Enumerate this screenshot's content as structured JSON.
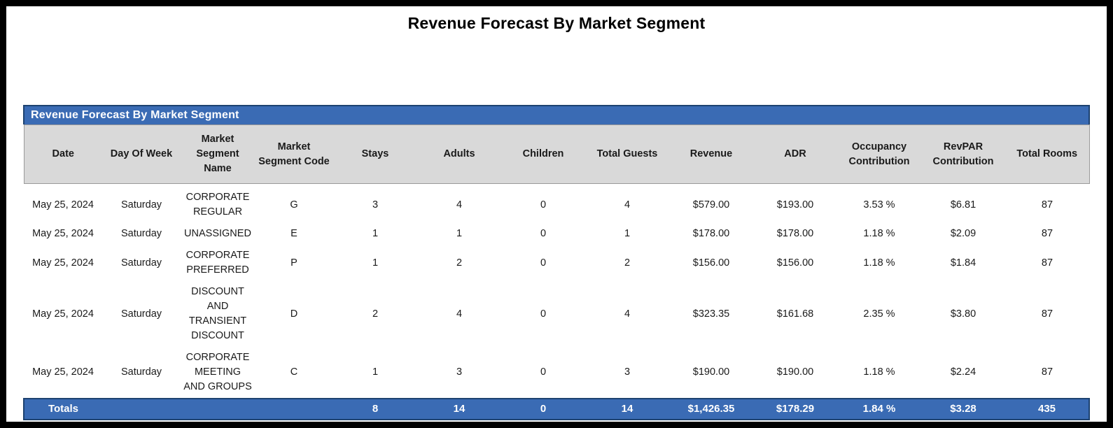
{
  "report": {
    "title": "Revenue Forecast By Market Segment"
  },
  "table": {
    "section_title": "Revenue Forecast By Market Segment",
    "columns": [
      "Date",
      "Day Of Week",
      "Market Segment Name",
      "Market Segment Code",
      "Stays",
      "Adults",
      "Children",
      "Total Guests",
      "Revenue",
      "ADR",
      "Occupancy Contribution",
      "RevPAR Contribution",
      "Total Rooms"
    ],
    "column_keys": [
      "date",
      "day-of-week",
      "market-segment-name",
      "market-segment-code",
      "stays",
      "adults",
      "children",
      "total-guests",
      "revenue",
      "adr",
      "occupancy-contribution",
      "revpar-contribution",
      "total-rooms"
    ],
    "rows": [
      [
        "May 25, 2024",
        "Saturday",
        "CORPORATE REGULAR",
        "G",
        "3",
        "4",
        "0",
        "4",
        "$579.00",
        "$193.00",
        "3.53 %",
        "$6.81",
        "87"
      ],
      [
        "May 25, 2024",
        "Saturday",
        "UNASSIGNED",
        "E",
        "1",
        "1",
        "0",
        "1",
        "$178.00",
        "$178.00",
        "1.18 %",
        "$2.09",
        "87"
      ],
      [
        "May 25, 2024",
        "Saturday",
        "CORPORATE PREFERRED",
        "P",
        "1",
        "2",
        "0",
        "2",
        "$156.00",
        "$156.00",
        "1.18 %",
        "$1.84",
        "87"
      ],
      [
        "May 25, 2024",
        "Saturday",
        "DISCOUNT AND TRANSIENT DISCOUNT",
        "D",
        "2",
        "4",
        "0",
        "4",
        "$323.35",
        "$161.68",
        "2.35 %",
        "$3.80",
        "87"
      ],
      [
        "May 25, 2024",
        "Saturday",
        "CORPORATE MEETING AND GROUPS",
        "C",
        "1",
        "3",
        "0",
        "3",
        "$190.00",
        "$190.00",
        "1.18 %",
        "$2.24",
        "87"
      ]
    ],
    "totals": [
      "Totals",
      "",
      "",
      "",
      "8",
      "14",
      "0",
      "14",
      "$1,426.35",
      "$178.29",
      "1.84 %",
      "$3.28",
      "435"
    ]
  },
  "colors": {
    "accent_blue": "#3a6bb4",
    "blue_border": "#1d4270",
    "header_gray": "#d9d9d9",
    "page_border": "#000000"
  }
}
